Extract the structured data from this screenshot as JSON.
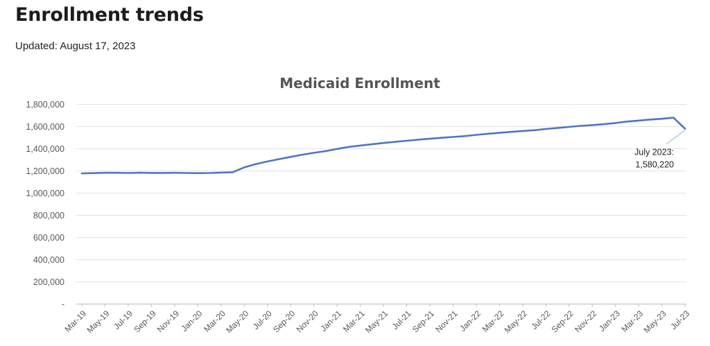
{
  "header": {
    "title": "Enrollment trends",
    "updated": "Updated: August 17, 2023"
  },
  "colors": {
    "series": "#4f74c4",
    "grid": "#e3e3e3"
  },
  "chart_data": {
    "type": "line",
    "title": "Medicaid Enrollment",
    "xlabel": "",
    "ylabel": "",
    "ylim": [
      0,
      1800000
    ],
    "yticks": [
      0,
      200000,
      400000,
      600000,
      800000,
      1000000,
      1200000,
      1400000,
      1600000,
      1800000
    ],
    "ytick_labels": [
      "-",
      "200,000",
      "400,000",
      "600,000",
      "800,000",
      "1,000,000",
      "1,200,000",
      "1,400,000",
      "1,600,000",
      "1,800,000"
    ],
    "x_tick_labels": [
      "Mar-19",
      "May-19",
      "Jul-19",
      "Sep-19",
      "Nov-19",
      "Jan-20",
      "Mar-20",
      "May-20",
      "Jul-20",
      "Sep-20",
      "Nov-20",
      "Jan-21",
      "Mar-21",
      "May-21",
      "Jul-21",
      "Sep-21",
      "Nov-21",
      "Jan-22",
      "Mar-22",
      "May-22",
      "Jul-22",
      "Sep-22",
      "Nov-22",
      "Jan-23",
      "Mar-23",
      "May-23",
      "Jul-23"
    ],
    "grid": true,
    "legend": "none",
    "series": [
      {
        "x": [
          "Mar-19",
          "Apr-19",
          "May-19",
          "Jun-19",
          "Jul-19",
          "Aug-19",
          "Sep-19",
          "Oct-19",
          "Nov-19",
          "Dec-19",
          "Jan-20",
          "Feb-20",
          "Mar-20",
          "Apr-20",
          "May-20",
          "Jun-20",
          "Jul-20",
          "Aug-20",
          "Sep-20",
          "Oct-20",
          "Nov-20",
          "Dec-20",
          "Jan-21",
          "Feb-21",
          "Mar-21",
          "Apr-21",
          "May-21",
          "Jun-21",
          "Jul-21",
          "Aug-21",
          "Sep-21",
          "Oct-21",
          "Nov-21",
          "Dec-21",
          "Jan-22",
          "Feb-22",
          "Mar-22",
          "Apr-22",
          "May-22",
          "Jun-22",
          "Jul-22",
          "Aug-22",
          "Sep-22",
          "Oct-22",
          "Nov-22",
          "Dec-22",
          "Jan-23",
          "Feb-23",
          "Mar-23",
          "Apr-23",
          "May-23",
          "Jun-23",
          "Jul-23"
        ],
        "values": [
          1178000,
          1180000,
          1183000,
          1183000,
          1181000,
          1184000,
          1182000,
          1182000,
          1183000,
          1181000,
          1180000,
          1181000,
          1185000,
          1188000,
          1232000,
          1262000,
          1285000,
          1306000,
          1326000,
          1346000,
          1363000,
          1378000,
          1398000,
          1416000,
          1429000,
          1440000,
          1452000,
          1462000,
          1472000,
          1482000,
          1490000,
          1499000,
          1506000,
          1514000,
          1525000,
          1535000,
          1543000,
          1552000,
          1560000,
          1567000,
          1578000,
          1587000,
          1597000,
          1606000,
          1613000,
          1621000,
          1632000,
          1645000,
          1654000,
          1663000,
          1670000,
          1680000,
          1580220
        ]
      }
    ],
    "annotations": [
      {
        "text_line1": "July 2023:",
        "text_line2": "1,580,220",
        "x": "Jul-23",
        "y": 1580220
      }
    ]
  }
}
